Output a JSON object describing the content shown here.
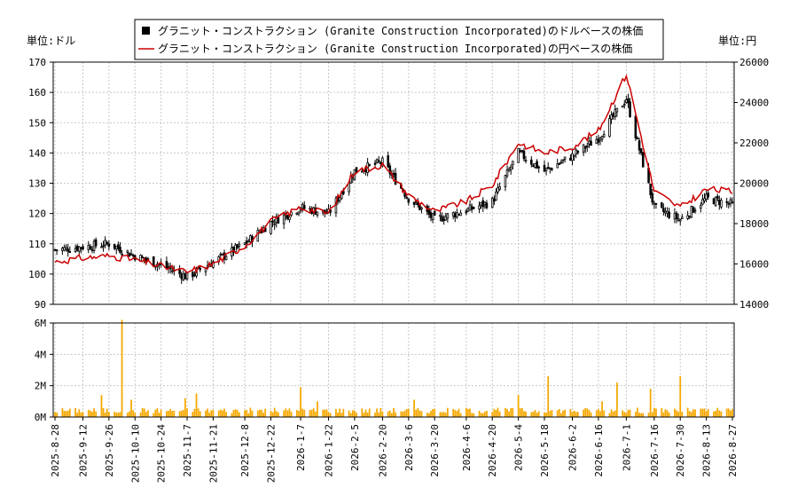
{
  "chart_data": [
    {
      "type": "candlestick",
      "legend": {
        "placement": "top-center",
        "entries": [
          {
            "label": "グラニット・コンストラクション (Granite Construction Incorporated)のドルベースの株価",
            "color": "#000000",
            "marker": "square"
          },
          {
            "label": "グラニット・コンストラクション (Granite Construction Incorporated)の円ベースの株価",
            "color": "#cc0000",
            "marker": "line"
          }
        ]
      },
      "left_unit_label": "単位:ドル",
      "right_unit_label": "単位:円",
      "y_left": {
        "min": 90,
        "max": 170,
        "ticks": [
          90,
          100,
          110,
          120,
          130,
          140,
          150,
          160,
          170
        ]
      },
      "y_right": {
        "min": 14000,
        "max": 26000,
        "ticks": [
          14000,
          16000,
          18000,
          20000,
          22000,
          24000,
          26000
        ]
      },
      "grid": true,
      "x_ticks": [
        "2025-8-28",
        "2025-9-12",
        "2025-9-26",
        "2025-10-10",
        "2025-10-24",
        "2025-11-7",
        "2025-11-21",
        "2025-12-8",
        "2025-12-22",
        "2026-1-7",
        "2026-1-22",
        "2026-2-5",
        "2026-2-20",
        "2026-3-6",
        "2026-3-20",
        "2026-4-6",
        "2026-4-20",
        "2026-5-4",
        "2026-5-18",
        "2026-6-2",
        "2026-6-16",
        "2026-7-1",
        "2026-7-16",
        "2026-7-30",
        "2026-8-13",
        "2026-8-27"
      ],
      "usd_close_anchors": [
        {
          "date": "2025-8-28",
          "v": 108
        },
        {
          "date": "2025-9-12",
          "v": 109
        },
        {
          "date": "2025-9-26",
          "v": 110
        },
        {
          "date": "2025-10-10",
          "v": 106
        },
        {
          "date": "2025-10-24",
          "v": 103
        },
        {
          "date": "2025-11-7",
          "v": 99
        },
        {
          "date": "2025-11-21",
          "v": 104
        },
        {
          "date": "2025-12-8",
          "v": 110
        },
        {
          "date": "2025-12-22",
          "v": 117
        },
        {
          "date": "2026-1-7",
          "v": 122
        },
        {
          "date": "2026-1-22",
          "v": 120
        },
        {
          "date": "2026-2-5",
          "v": 134
        },
        {
          "date": "2026-2-20",
          "v": 137
        },
        {
          "date": "2026-3-6",
          "v": 125
        },
        {
          "date": "2026-3-20",
          "v": 118
        },
        {
          "date": "2026-4-6",
          "v": 121
        },
        {
          "date": "2026-4-20",
          "v": 124
        },
        {
          "date": "2026-5-4",
          "v": 140
        },
        {
          "date": "2026-5-18",
          "v": 134
        },
        {
          "date": "2026-6-2",
          "v": 139
        },
        {
          "date": "2026-6-16",
          "v": 145
        },
        {
          "date": "2026-7-1",
          "v": 158
        },
        {
          "date": "2026-7-16",
          "v": 122
        },
        {
          "date": "2026-7-30",
          "v": 118
        },
        {
          "date": "2026-8-13",
          "v": 125
        },
        {
          "date": "2026-8-27",
          "v": 123
        }
      ],
      "jpy_close_anchors": [
        {
          "date": "2025-8-28",
          "v": 16100
        },
        {
          "date": "2025-9-12",
          "v": 16300
        },
        {
          "date": "2025-9-26",
          "v": 16400
        },
        {
          "date": "2025-10-10",
          "v": 16200
        },
        {
          "date": "2025-10-24",
          "v": 15900
        },
        {
          "date": "2025-11-7",
          "v": 15600
        },
        {
          "date": "2025-11-21",
          "v": 16000
        },
        {
          "date": "2025-12-8",
          "v": 16900
        },
        {
          "date": "2025-12-22",
          "v": 18100
        },
        {
          "date": "2026-1-7",
          "v": 18800
        },
        {
          "date": "2026-1-22",
          "v": 18500
        },
        {
          "date": "2026-2-5",
          "v": 20600
        },
        {
          "date": "2026-2-20",
          "v": 20900
        },
        {
          "date": "2026-3-6",
          "v": 19400
        },
        {
          "date": "2026-3-20",
          "v": 18600
        },
        {
          "date": "2026-4-6",
          "v": 19100
        },
        {
          "date": "2026-4-20",
          "v": 19900
        },
        {
          "date": "2026-5-4",
          "v": 22000
        },
        {
          "date": "2026-5-18",
          "v": 21500
        },
        {
          "date": "2026-6-2",
          "v": 21800
        },
        {
          "date": "2026-6-16",
          "v": 22600
        },
        {
          "date": "2026-7-1",
          "v": 25400
        },
        {
          "date": "2026-7-16",
          "v": 19600
        },
        {
          "date": "2026-7-30",
          "v": 18800
        },
        {
          "date": "2026-8-13",
          "v": 19700
        },
        {
          "date": "2026-8-27",
          "v": 19600
        }
      ],
      "colors": {
        "candle": "#000000",
        "jpy_line": "#cc0000",
        "grid": "#c8c8c8",
        "axis": "#000000"
      }
    },
    {
      "type": "bar",
      "title": "",
      "y": {
        "min": 0,
        "max": 6000000,
        "ticks": [
          {
            "v": 0,
            "label": "0M"
          },
          {
            "v": 2000000,
            "label": "2M"
          },
          {
            "v": 4000000,
            "label": "4M"
          },
          {
            "v": 6000000,
            "label": "6M"
          }
        ]
      },
      "bar_color": "#f5a800",
      "volume_base": 400000,
      "volume_spikes": [
        {
          "date": "2025-10-3",
          "v": 6200000
        },
        {
          "date": "2025-9-22",
          "v": 1400000
        },
        {
          "date": "2025-10-8",
          "v": 1100000
        },
        {
          "date": "2025-11-6",
          "v": 1200000
        },
        {
          "date": "2025-11-12",
          "v": 1500000
        },
        {
          "date": "2026-1-7",
          "v": 1900000
        },
        {
          "date": "2026-1-16",
          "v": 1000000
        },
        {
          "date": "2026-3-9",
          "v": 1100000
        },
        {
          "date": "2026-5-4",
          "v": 1400000
        },
        {
          "date": "2026-5-20",
          "v": 2600000
        },
        {
          "date": "2026-6-18",
          "v": 1000000
        },
        {
          "date": "2026-6-26",
          "v": 2200000
        },
        {
          "date": "2026-7-14",
          "v": 1800000
        },
        {
          "date": "2026-7-30",
          "v": 2600000
        },
        {
          "date": "2026-8-1",
          "v": 1700000
        }
      ]
    }
  ]
}
